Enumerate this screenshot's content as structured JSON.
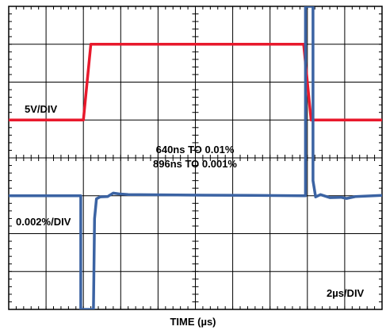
{
  "chart_data": {
    "type": "line",
    "xlabel": "TIME (µs)",
    "x_scale_label": "2µs/DIV",
    "grid": true,
    "divisions": {
      "x": 10,
      "y": 8
    },
    "annotations": [
      "640ns TO 0.01%",
      "896ns TO 0.001%"
    ],
    "series": [
      {
        "name": "5V/DIV",
        "color": "#e8192c",
        "points": [
          [
            0,
            5
          ],
          [
            2,
            5
          ],
          [
            2.2,
            7
          ],
          [
            7.9,
            7
          ],
          [
            8.1,
            5
          ],
          [
            10,
            5
          ]
        ]
      },
      {
        "name": "0.002%/DIV",
        "color": "#3b63a3",
        "points": [
          [
            0,
            3
          ],
          [
            1.93,
            3
          ],
          [
            1.93,
            0
          ],
          [
            2.27,
            0
          ],
          [
            2.3,
            2.4
          ],
          [
            2.35,
            2.92
          ],
          [
            2.45,
            2.97
          ],
          [
            2.65,
            2.98
          ],
          [
            2.8,
            3.07
          ],
          [
            2.95,
            3.05
          ],
          [
            3.2,
            3.03
          ],
          [
            4.5,
            3.02
          ],
          [
            6.5,
            3.01
          ],
          [
            7.95,
            3
          ],
          [
            7.95,
            8
          ],
          [
            8.15,
            8
          ],
          [
            8.15,
            3.4
          ],
          [
            8.22,
            2.97
          ],
          [
            8.35,
            3.03
          ],
          [
            8.6,
            2.95
          ],
          [
            8.9,
            2.96
          ],
          [
            9.05,
            2.93
          ],
          [
            9.3,
            2.98
          ],
          [
            10,
            3.01
          ]
        ]
      }
    ]
  }
}
